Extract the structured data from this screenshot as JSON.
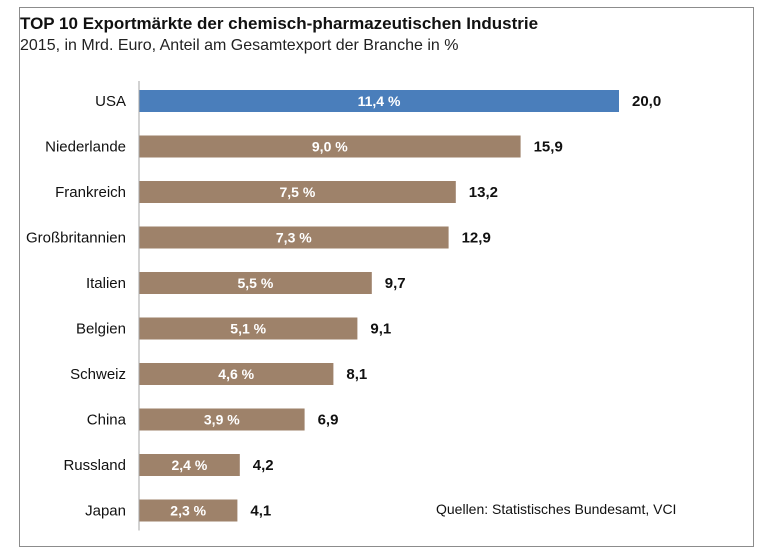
{
  "chart_data": {
    "type": "bar",
    "orientation": "horizontal",
    "title": "TOP 10 Exportmärkte der chemisch-pharmazeutischen Industrie",
    "subtitle": "2015, in Mrd. Euro, Anteil am Gesamtexport der Branche in %",
    "categories": [
      "USA",
      "Niederlande",
      "Frankreich",
      "Großbritannien",
      "Italien",
      "Belgien",
      "Schweiz",
      "China",
      "Russland",
      "Japan"
    ],
    "values": [
      20.0,
      15.9,
      13.2,
      12.9,
      9.7,
      9.1,
      8.1,
      6.9,
      4.2,
      4.1
    ],
    "value_labels": [
      "20,0",
      "15,9",
      "13,2",
      "12,9",
      "9,7",
      "9,1",
      "8,1",
      "6,9",
      "4,2",
      "4,1"
    ],
    "share_labels": [
      "11,4 %",
      "9,0 %",
      "7,5 %",
      "7,3 %",
      "5,5 %",
      "5,1 %",
      "4,6 %",
      "3,9 %",
      "2,4 %",
      "2,3 %"
    ],
    "xlim": [
      0,
      20.0
    ],
    "grid": false,
    "colors": {
      "highlight": "#4a7ebb",
      "default": "#9e826a"
    },
    "highlight_index": 0,
    "source": "Quellen:  Statistisches Bundesamt, VCI"
  }
}
